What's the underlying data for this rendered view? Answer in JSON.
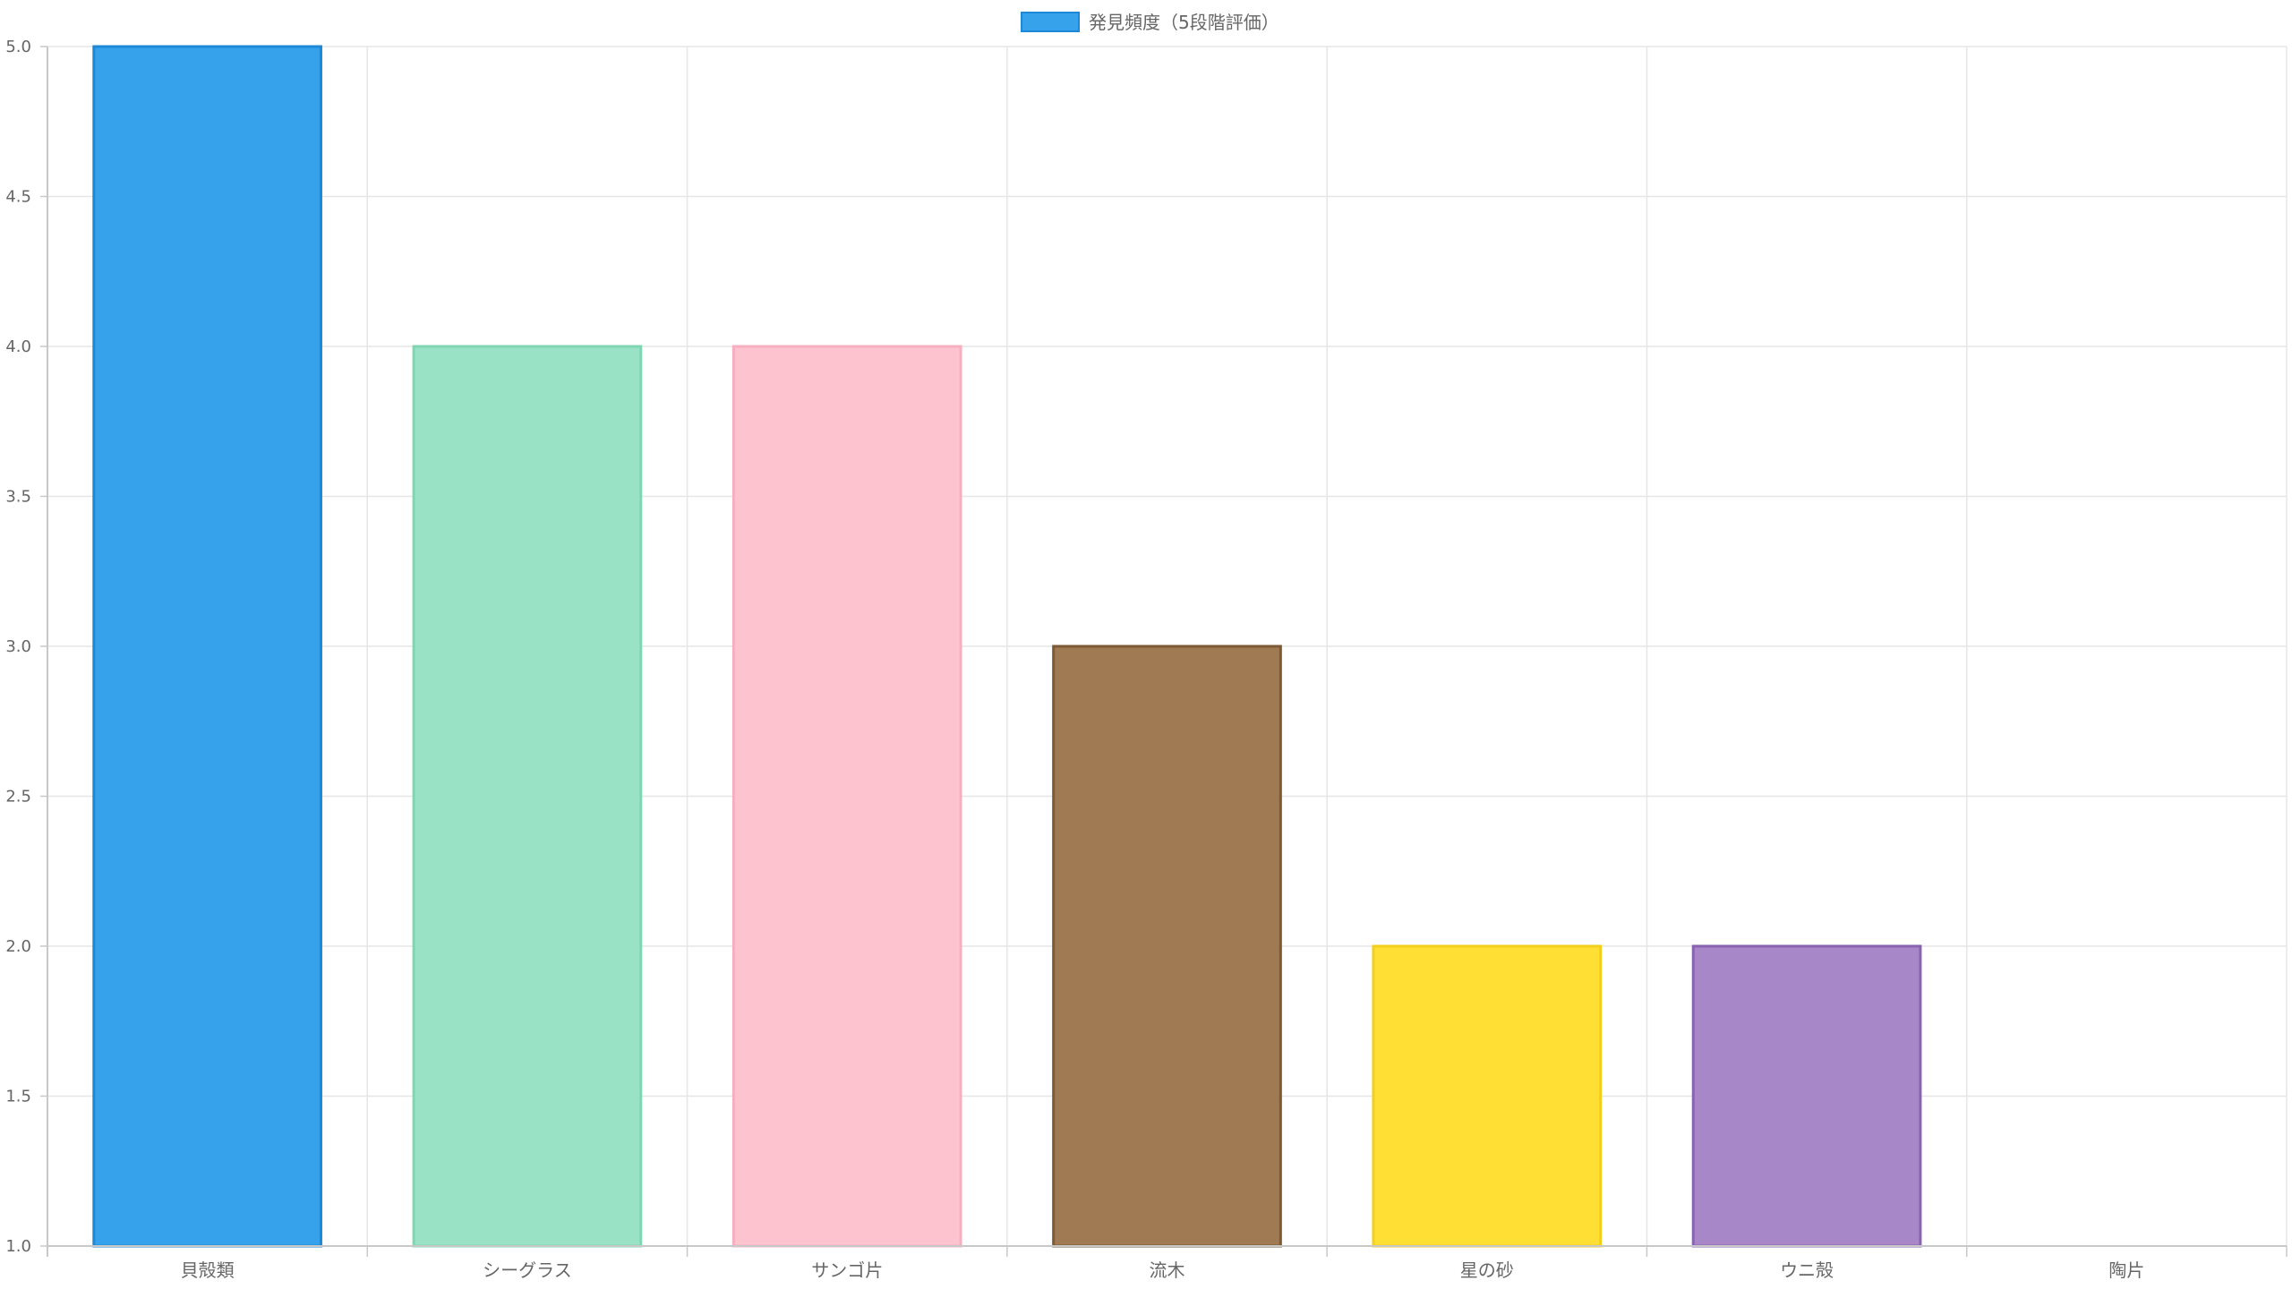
{
  "chart_data": {
    "type": "bar",
    "categories": [
      "貝殻類",
      "シーグラス",
      "サンゴ片",
      "流木",
      "星の砂",
      "ウニ殻",
      "陶片"
    ],
    "series": [
      {
        "name": "発見頻度（5段階評価）",
        "values": [
          5,
          4,
          4,
          3,
          2,
          2,
          1
        ]
      }
    ],
    "ylim": [
      1.0,
      5.0
    ],
    "yticks": [
      "1.0",
      "1.5",
      "2.0",
      "2.5",
      "3.0",
      "3.5",
      "4.0",
      "4.5",
      "5.0"
    ],
    "grid": true,
    "legend_position": "top-center",
    "legend_color": "#36A2EB",
    "bar_colors": [
      {
        "fill": "#36A2EB",
        "stroke": "#1e88d6"
      },
      {
        "fill": "#99E2C5",
        "stroke": "#7fd6b2"
      },
      {
        "fill": "#FDC3CF",
        "stroke": "#f7afc0"
      },
      {
        "fill": "#A07A52",
        "stroke": "#7c5a35"
      },
      {
        "fill": "#FFDF33",
        "stroke": "#f2cf1d"
      },
      {
        "fill": "#A887C8",
        "stroke": "#8a63b0"
      },
      {
        "fill": "#D9D9D9",
        "stroke": "#bdbdbd"
      }
    ]
  }
}
